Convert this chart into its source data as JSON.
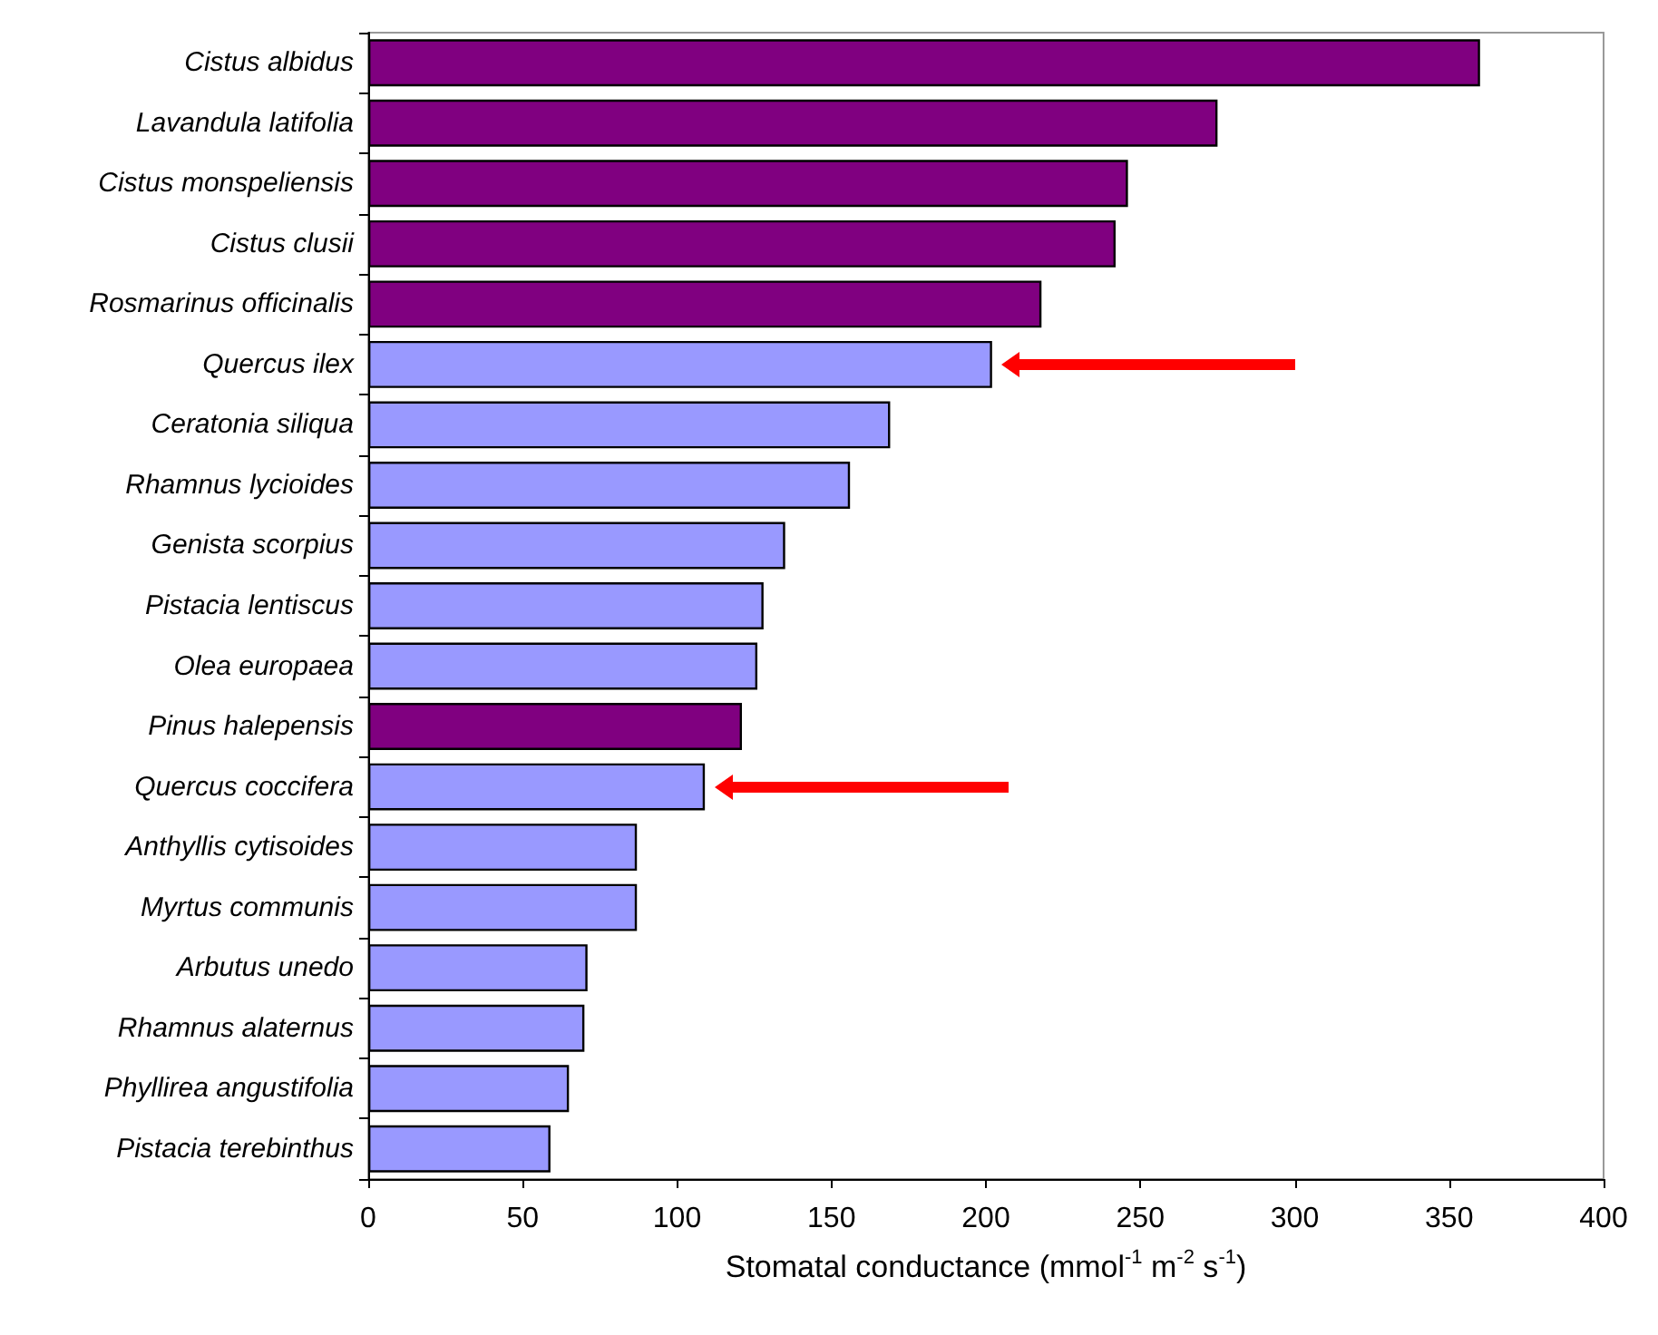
{
  "chart_data": {
    "type": "bar",
    "orientation": "horizontal",
    "categories": [
      "Cistus albidus",
      "Lavandula latifolia",
      "Cistus monspeliensis",
      "Cistus clusii",
      "Rosmarinus officinalis",
      "Quercus ilex",
      "Ceratonia siliqua",
      "Rhamnus lycioides",
      "Genista scorpius",
      "Pistacia lentiscus",
      "Olea europaea",
      "Pinus halepensis",
      "Quercus coccifera",
      "Anthyllis cytisoides",
      "Myrtus communis",
      "Arbutus unedo",
      "Rhamnus alaternus",
      "Phyllirea angustifolia",
      "Pistacia terebinthus"
    ],
    "values": [
      360,
      275,
      246,
      242,
      218,
      202,
      169,
      156,
      135,
      128,
      126,
      121,
      109,
      87,
      87,
      71,
      70,
      65,
      59
    ],
    "colors": [
      "#800080",
      "#800080",
      "#800080",
      "#800080",
      "#800080",
      "#9999ff",
      "#9999ff",
      "#9999ff",
      "#9999ff",
      "#9999ff",
      "#9999ff",
      "#800080",
      "#9999ff",
      "#9999ff",
      "#9999ff",
      "#9999ff",
      "#9999ff",
      "#9999ff",
      "#9999ff"
    ],
    "xlabel": "Stomatal conductance (mmol$^{-1}$ m$^{-2}$ s$^{-1}$)",
    "xlim": [
      0,
      400
    ],
    "xticks": [
      0,
      50,
      100,
      150,
      200,
      250,
      300,
      350,
      400
    ],
    "grid": false
  }
}
